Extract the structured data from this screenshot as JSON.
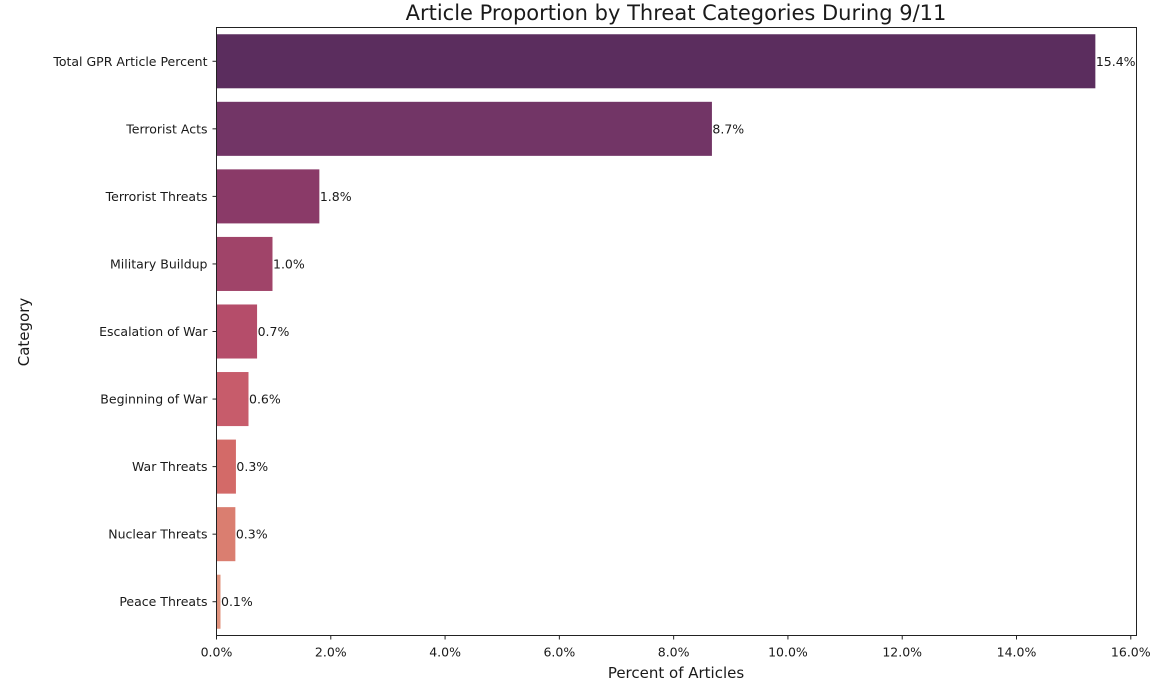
{
  "chart_data": {
    "type": "bar",
    "orientation": "horizontal",
    "title": "Article Proportion by Threat Categories During 9/11",
    "xlabel": "Percent of Articles",
    "ylabel": "Category",
    "categories": [
      "Total GPR Article Percent",
      "Terrorist Acts",
      "Terrorist Threats",
      "Military Buildup",
      "Escalation of War",
      "Beginning of War",
      "War Threats",
      "Nuclear Threats",
      "Peace Threats"
    ],
    "values": [
      15.38,
      8.67,
      1.8,
      0.98,
      0.71,
      0.56,
      0.34,
      0.33,
      0.07
    ],
    "data_labels": [
      "15.4%",
      "8.7%",
      "1.8%",
      "1.0%",
      "0.7%",
      "0.6%",
      "0.3%",
      "0.3%",
      "0.1%"
    ],
    "xlim": [
      0,
      16.1
    ],
    "x_ticks": [
      0,
      2,
      4,
      6,
      8,
      10,
      12,
      14,
      16
    ],
    "x_tick_labels": [
      "0.0%",
      "2.0%",
      "4.0%",
      "6.0%",
      "8.0%",
      "10.0%",
      "12.0%",
      "14.0%",
      "16.0%"
    ],
    "grid": false,
    "colors": [
      "#5b2d5e",
      "#723566",
      "#8a3a68",
      "#a04469",
      "#b54d6a",
      "#c75c6b",
      "#d36a68",
      "#da7e70",
      "#e1937d"
    ]
  }
}
